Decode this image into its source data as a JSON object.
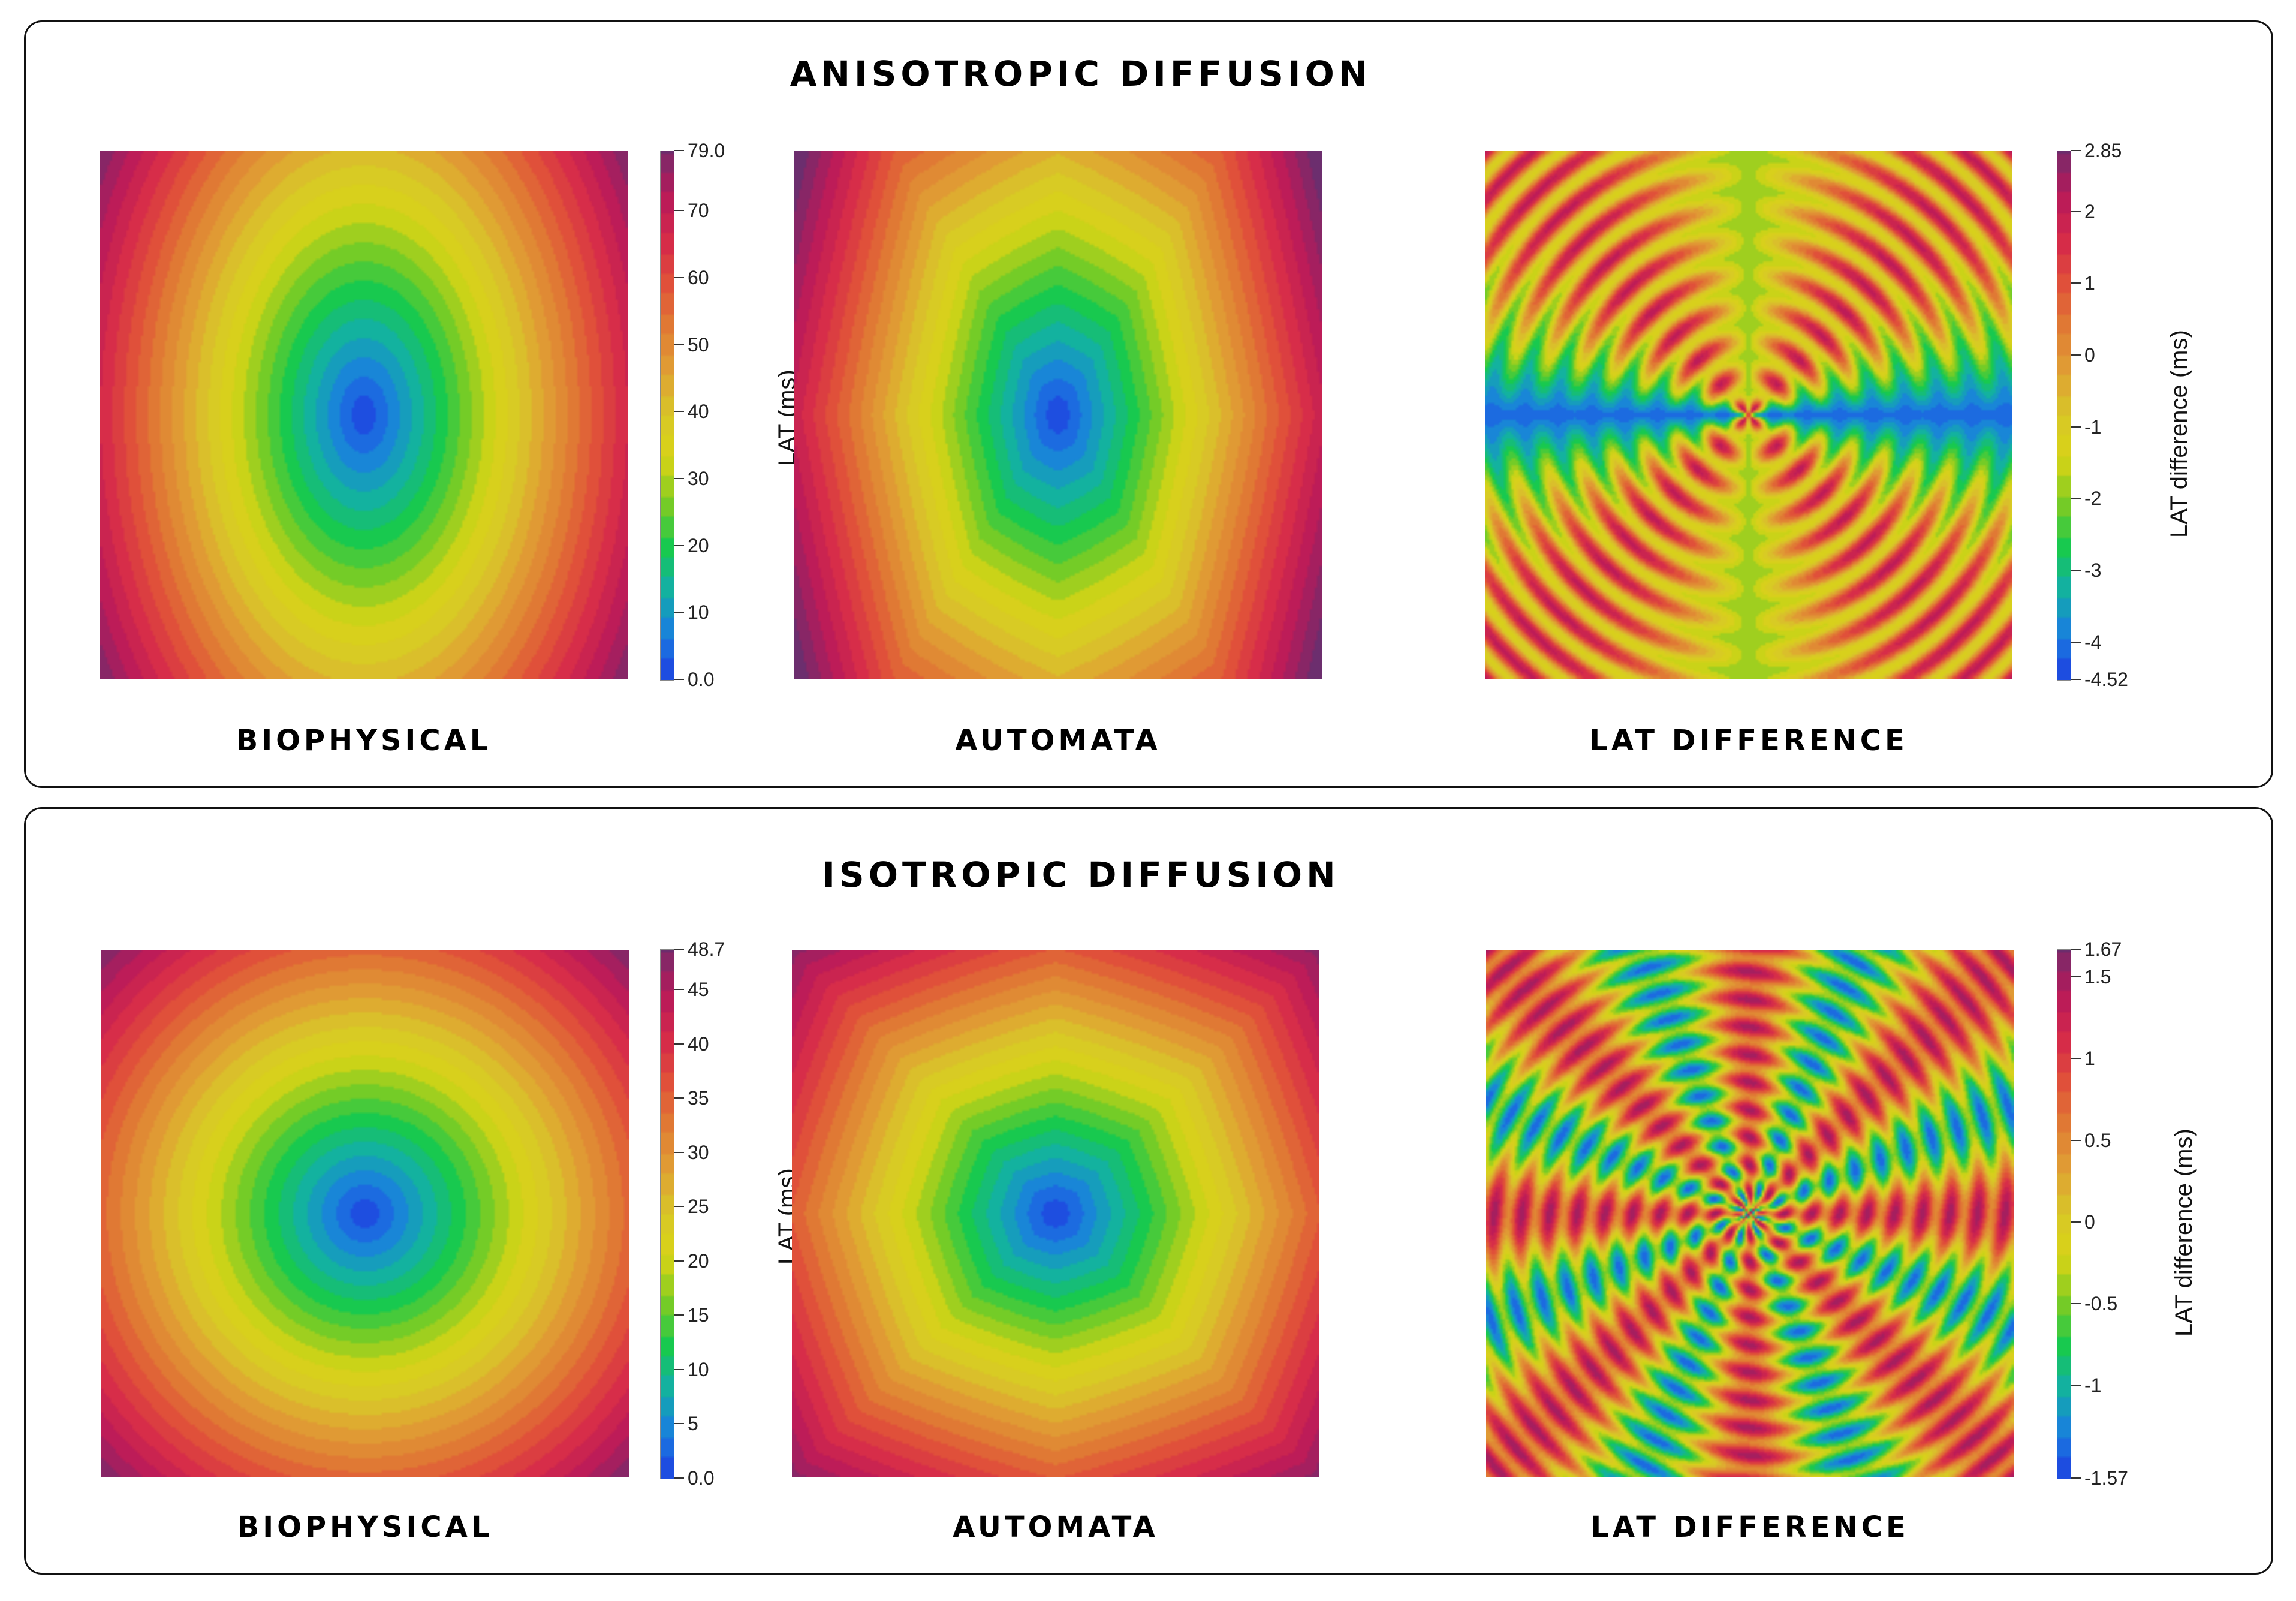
{
  "panels": [
    {
      "title": "ANISOTROPIC DIFFUSION",
      "labels": {
        "biophysical": "BIOPHYSICAL",
        "automata": "AUTOMATA",
        "difference": "LAT DIFFERENCE"
      },
      "lat_colorbar": {
        "axis_label": "LAT (ms)",
        "min": 0.0,
        "max": 79.0,
        "ticks": [
          "0.0",
          "10",
          "20",
          "30",
          "40",
          "50",
          "60",
          "70",
          "79.0"
        ],
        "tick_values": [
          0,
          10,
          20,
          30,
          40,
          50,
          60,
          70,
          79
        ]
      },
      "diff_colorbar": {
        "axis_label": "LAT difference (ms)",
        "min": -4.52,
        "max": 2.85,
        "ticks": [
          "-4.52",
          "-4",
          "-3",
          "-2",
          "-1",
          "0",
          "1",
          "2",
          "2.85"
        ],
        "tick_values": [
          -4.52,
          -4,
          -3,
          -2,
          -1,
          0,
          1,
          2,
          2.85
        ]
      },
      "anisotropy": {
        "x_speed": 1.0,
        "y_speed": 1.6
      }
    },
    {
      "title": "ISOTROPIC DIFFUSION",
      "labels": {
        "biophysical": "BIOPHYSICAL",
        "automata": "AUTOMATA",
        "difference": "LAT DIFFERENCE"
      },
      "lat_colorbar": {
        "axis_label": "LAT (ms)",
        "min": 0.0,
        "max": 48.7,
        "ticks": [
          "0.0",
          "5",
          "10",
          "15",
          "20",
          "25",
          "30",
          "35",
          "40",
          "45",
          "48.7"
        ],
        "tick_values": [
          0,
          5,
          10,
          15,
          20,
          25,
          30,
          35,
          40,
          45,
          48.7
        ]
      },
      "diff_colorbar": {
        "axis_label": "LAT difference (ms)",
        "min": -1.57,
        "max": 1.67,
        "ticks": [
          "-1.57",
          "-1",
          "-0.5",
          "0",
          "0.5",
          "1",
          "1.5",
          "1.67"
        ],
        "tick_values": [
          -1.57,
          -1,
          -0.5,
          0,
          0.5,
          1,
          1.5,
          1.67
        ]
      },
      "anisotropy": {
        "x_speed": 1.0,
        "y_speed": 1.0
      }
    }
  ],
  "colormap": [
    "#1f3fe0",
    "#1a7ee0",
    "#13b0a6",
    "#18c94f",
    "#7ccc24",
    "#d8d416",
    "#d8c828",
    "#e0a034",
    "#e07c34",
    "#e0503a",
    "#d62a4a",
    "#b81a5a",
    "#7a2a6a"
  ]
}
